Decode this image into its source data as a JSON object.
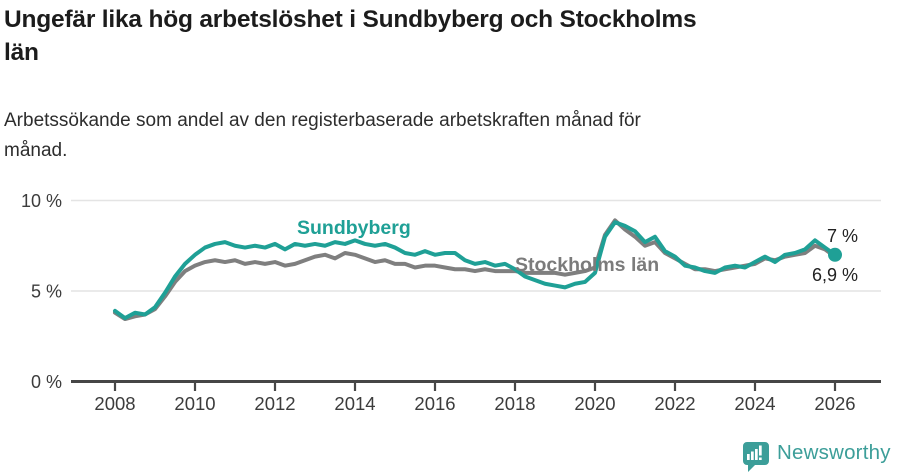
{
  "header": {
    "title_lines": [
      "Ungefär lika hög arbetslöshet i Sundbyberg och Stockholms",
      "län"
    ],
    "subtitle_lines": [
      "Arbetssökande som andel av den registerbaserade arbetskraften månad för",
      "månad."
    ]
  },
  "chart_data": {
    "type": "line",
    "title": "Ungefär lika hög arbetslöshet i Sundbyberg och Stockholms län",
    "subtitle": "Arbetssökande som andel av den registerbaserade arbetskraften månad för månad.",
    "xlabel": "",
    "ylabel": "",
    "ylim": [
      0,
      10
    ],
    "xlim": [
      2007.5,
      2026.6
    ],
    "grid": true,
    "legend_position": "inline-labels",
    "y_ticks": [
      {
        "value": 0,
        "label": "0 %"
      },
      {
        "value": 5,
        "label": "5 %"
      },
      {
        "value": 10,
        "label": "10 %"
      }
    ],
    "x_ticks": [
      {
        "value": 2008,
        "label": "2008"
      },
      {
        "value": 2010,
        "label": "2010"
      },
      {
        "value": 2012,
        "label": "2012"
      },
      {
        "value": 2014,
        "label": "2014"
      },
      {
        "value": 2016,
        "label": "2016"
      },
      {
        "value": 2018,
        "label": "2018"
      },
      {
        "value": 2020,
        "label": "2020"
      },
      {
        "value": 2022,
        "label": "2022"
      },
      {
        "value": 2024,
        "label": "2024"
      },
      {
        "value": 2026,
        "label": "2026"
      }
    ],
    "x_start": 2008.0,
    "x_step": 0.25,
    "x_unit": "year (monthly data)",
    "y_unit": "%",
    "series": [
      {
        "name": "Sundbyberg",
        "color": "#1fa096",
        "label_color": "#1fa096",
        "end_label": "7 %",
        "end_value": 7.0,
        "values": [
          3.9,
          3.5,
          3.8,
          3.7,
          4.1,
          4.9,
          5.8,
          6.5,
          7.0,
          7.4,
          7.6,
          7.7,
          7.5,
          7.4,
          7.5,
          7.4,
          7.6,
          7.3,
          7.6,
          7.5,
          7.6,
          7.5,
          7.7,
          7.6,
          7.8,
          7.6,
          7.5,
          7.6,
          7.4,
          7.1,
          7.0,
          7.2,
          7.0,
          7.1,
          7.1,
          6.7,
          6.5,
          6.6,
          6.4,
          6.5,
          6.2,
          5.8,
          5.6,
          5.4,
          5.3,
          5.2,
          5.4,
          5.5,
          6.0,
          8.0,
          8.8,
          8.6,
          8.3,
          7.7,
          8.0,
          7.2,
          6.9,
          6.4,
          6.3,
          6.1,
          6.0,
          6.3,
          6.4,
          6.3,
          6.6,
          6.9,
          6.6,
          7.0,
          7.1,
          7.3,
          7.8,
          7.4,
          7.0
        ]
      },
      {
        "name": "Stockholms län",
        "color": "#7f7f7f",
        "label_color": "#7b7b7b",
        "end_label": "6,9 %",
        "end_value": 6.9,
        "values": [
          3.8,
          3.45,
          3.6,
          3.7,
          4.0,
          4.7,
          5.5,
          6.1,
          6.4,
          6.6,
          6.7,
          6.6,
          6.7,
          6.5,
          6.6,
          6.5,
          6.6,
          6.4,
          6.5,
          6.7,
          6.9,
          7.0,
          6.8,
          7.1,
          7.0,
          6.8,
          6.6,
          6.7,
          6.5,
          6.5,
          6.3,
          6.4,
          6.4,
          6.3,
          6.2,
          6.2,
          6.1,
          6.2,
          6.1,
          6.1,
          6.1,
          6.0,
          6.0,
          6.0,
          6.0,
          5.9,
          6.0,
          6.1,
          6.3,
          8.1,
          8.9,
          8.4,
          8.0,
          7.5,
          7.7,
          7.1,
          6.8,
          6.5,
          6.2,
          6.2,
          6.1,
          6.2,
          6.3,
          6.4,
          6.5,
          6.8,
          6.7,
          6.9,
          7.0,
          7.1,
          7.5,
          7.3,
          6.9
        ]
      }
    ]
  },
  "footer": {
    "brand": "Newsworthy",
    "brand_color": "#3c9e99"
  }
}
